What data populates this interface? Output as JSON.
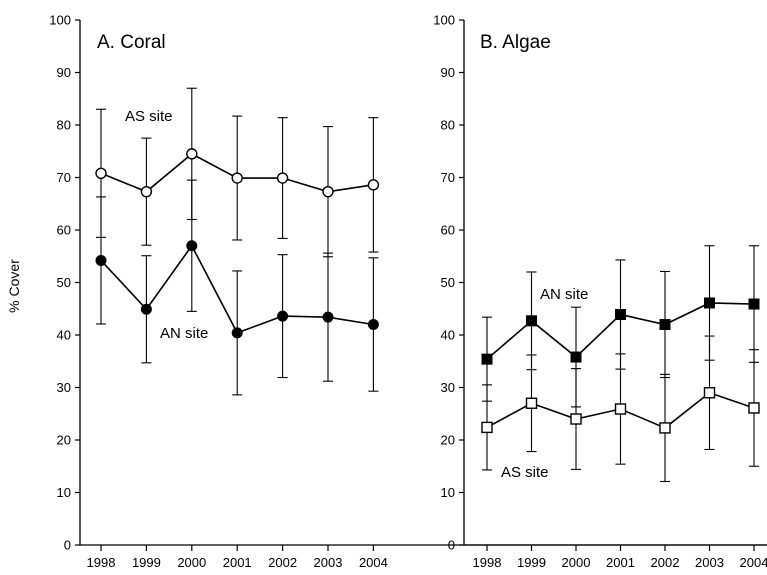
{
  "chart_data": [
    {
      "type": "line",
      "title": "A. Coral",
      "ylabel": "% Cover",
      "xlabel": "",
      "categories": [
        "1998",
        "1999",
        "2000",
        "2001",
        "2002",
        "2003",
        "2004"
      ],
      "ylim": [
        0,
        100
      ],
      "yticks": [
        "0",
        "10",
        "20",
        "30",
        "40",
        "50",
        "60",
        "70",
        "80",
        "90",
        "100"
      ],
      "grid": false,
      "series": [
        {
          "name": "AS site",
          "marker": "open-circle",
          "values": [
            70.8,
            67.3,
            74.5,
            69.9,
            69.9,
            67.3,
            68.6
          ],
          "error": [
            12.2,
            10.2,
            12.5,
            11.8,
            11.5,
            12.4,
            12.8
          ]
        },
        {
          "name": "AN site",
          "marker": "filled-circle",
          "values": [
            54.2,
            44.9,
            57.0,
            40.4,
            43.6,
            43.4,
            42.0
          ],
          "error": [
            12.1,
            10.2,
            12.5,
            11.8,
            11.7,
            12.2,
            12.7
          ]
        }
      ]
    },
    {
      "type": "line",
      "title": "B. Algae",
      "ylabel": "",
      "xlabel": "",
      "categories": [
        "1998",
        "1999",
        "2000",
        "2001",
        "2002",
        "2003",
        "2004"
      ],
      "ylim": [
        0,
        100
      ],
      "yticks": [
        "0",
        "10",
        "20",
        "30",
        "40",
        "50",
        "60",
        "70",
        "80",
        "90",
        "100"
      ],
      "grid": false,
      "series": [
        {
          "name": "AN site",
          "marker": "filled-square",
          "values": [
            35.4,
            42.7,
            35.8,
            43.9,
            42.0,
            46.1,
            45.9
          ],
          "error": [
            8.0,
            9.3,
            9.5,
            10.4,
            10.1,
            10.9,
            11.1
          ]
        },
        {
          "name": "AS site",
          "marker": "open-square",
          "values": [
            22.4,
            27.0,
            24.0,
            25.9,
            22.3,
            29.0,
            26.1
          ],
          "error": [
            8.1,
            9.2,
            9.6,
            10.5,
            10.2,
            10.8,
            11.1
          ]
        }
      ]
    }
  ]
}
